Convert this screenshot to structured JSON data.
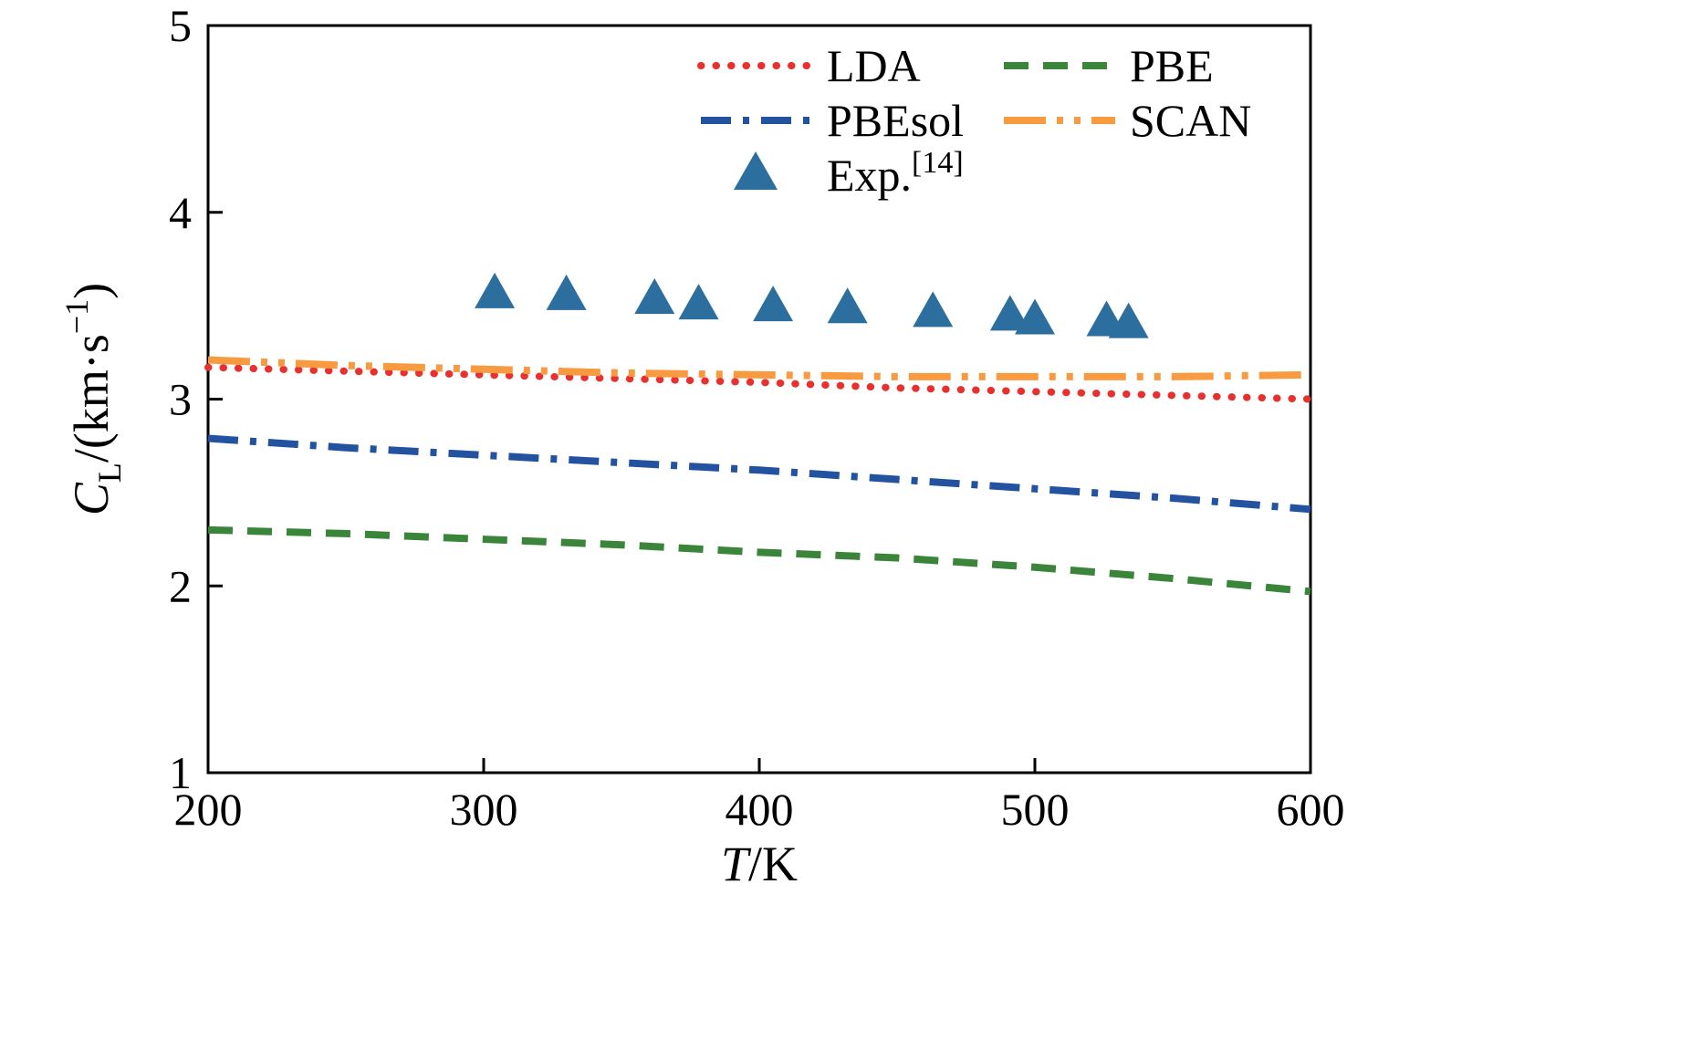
{
  "chart_data": {
    "type": "line",
    "xlabel": "T/K",
    "ylabel": "CL/(km·s−1)",
    "xlabel_parts": {
      "var": "T",
      "rest": "/K"
    },
    "ylabel_parts": {
      "var": "C",
      "sub": "L",
      "mid": "/(km·s",
      "sup": "−1",
      "end": ")"
    },
    "xlim": [
      200,
      600
    ],
    "ylim": [
      1,
      5
    ],
    "x_ticks": [
      200,
      300,
      400,
      500,
      600
    ],
    "y_ticks": [
      1,
      2,
      3,
      4,
      5
    ],
    "grid": false,
    "legend_position": "upper center inside",
    "axis_color": "#000000",
    "x": [
      200,
      250,
      300,
      350,
      400,
      450,
      500,
      550,
      600
    ],
    "series": [
      {
        "name": "LDA",
        "color": "#e8302e",
        "style": "dotted",
        "values": [
          3.17,
          3.15,
          3.13,
          3.11,
          3.09,
          3.06,
          3.04,
          3.02,
          3.0
        ]
      },
      {
        "name": "PBE",
        "color": "#3a853a",
        "style": "dashed",
        "values": [
          2.3,
          2.28,
          2.25,
          2.22,
          2.18,
          2.15,
          2.1,
          2.04,
          1.97
        ]
      },
      {
        "name": "PBEsol",
        "color": "#2353a0",
        "style": "dashdot",
        "values": [
          2.79,
          2.74,
          2.7,
          2.66,
          2.62,
          2.57,
          2.52,
          2.47,
          2.41
        ]
      },
      {
        "name": "SCAN",
        "color": "#f89a40",
        "style": "dashdotdot",
        "values": [
          3.21,
          3.18,
          3.16,
          3.14,
          3.13,
          3.12,
          3.12,
          3.12,
          3.13
        ]
      }
    ],
    "scatter": {
      "name": "Exp.",
      "name_sup": "[14]",
      "color": "#2c6e9e",
      "marker": "triangle-up",
      "x": [
        304,
        330,
        362,
        378,
        405,
        432,
        463,
        491,
        500,
        526,
        534
      ],
      "y": [
        3.56,
        3.55,
        3.53,
        3.5,
        3.49,
        3.48,
        3.46,
        3.44,
        3.42,
        3.41,
        3.4
      ]
    }
  },
  "legend": {
    "items": [
      "LDA",
      "PBE",
      "PBEsol",
      "SCAN",
      "Exp.[14]"
    ]
  }
}
